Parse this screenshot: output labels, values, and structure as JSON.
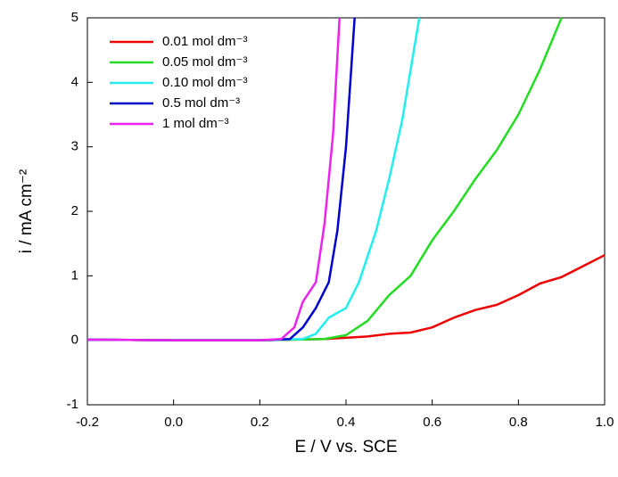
{
  "chart_data": {
    "type": "line",
    "x_label": "E / V vs. SCE",
    "y_label": "i / mA cm⁻²",
    "xlim": [
      -0.2,
      1.0
    ],
    "ylim": [
      -1,
      5
    ],
    "xticks": [
      -0.2,
      {
        "value": 0,
        "label": "0.0"
      },
      0.2,
      0.4,
      0.6,
      0.8,
      {
        "value": 1,
        "label": "1.0"
      }
    ],
    "yticks": [
      -1,
      0,
      1,
      2,
      3,
      4,
      5
    ],
    "legend": "upper-left",
    "series": [
      {
        "name": "0.01 mol dm⁻³",
        "color": "#ee0000",
        "x": [
          -0.2,
          0.0,
          0.2,
          0.35,
          0.45,
          0.5,
          0.55,
          0.6,
          0.65,
          0.7,
          0.75,
          0.8,
          0.85,
          0.9,
          0.95,
          1.0
        ],
        "values": [
          0.01,
          0.0,
          0.0,
          0.02,
          0.06,
          0.1,
          0.12,
          0.2,
          0.35,
          0.47,
          0.55,
          0.7,
          0.88,
          0.98,
          1.15,
          1.32
        ]
      },
      {
        "name": "0.05 mol dm⁻³",
        "color": "#22dd22",
        "x": [
          -0.2,
          0.0,
          0.2,
          0.35,
          0.4,
          0.45,
          0.5,
          0.55,
          0.6,
          0.65,
          0.7,
          0.75,
          0.8,
          0.85,
          0.9
        ],
        "values": [
          0.01,
          0.0,
          0.0,
          0.02,
          0.08,
          0.3,
          0.7,
          1.0,
          1.55,
          2.0,
          2.5,
          2.95,
          3.5,
          4.2,
          5.0
        ]
      },
      {
        "name": "0.10 mol dm⁻³",
        "color": "#22eeee",
        "x": [
          -0.2,
          0.0,
          0.2,
          0.3,
          0.33,
          0.36,
          0.4,
          0.43,
          0.47,
          0.5,
          0.53,
          0.57
        ],
        "values": [
          0.01,
          0.0,
          0.0,
          0.02,
          0.1,
          0.35,
          0.5,
          0.9,
          1.7,
          2.5,
          3.4,
          5.0
        ]
      },
      {
        "name": "0.5 mol dm⁻³",
        "color": "#0000cc",
        "x": [
          -0.2,
          0.0,
          0.2,
          0.27,
          0.3,
          0.33,
          0.36,
          0.38,
          0.4,
          0.42
        ],
        "values": [
          0.01,
          0.0,
          0.0,
          0.02,
          0.2,
          0.5,
          0.9,
          1.7,
          3.0,
          5.0
        ]
      },
      {
        "name": "1 mol dm⁻³",
        "color": "#ee22ee",
        "x": [
          -0.2,
          0.0,
          0.2,
          0.25,
          0.28,
          0.3,
          0.33,
          0.35,
          0.37,
          0.385
        ],
        "values": [
          0.01,
          0.0,
          0.0,
          0.02,
          0.2,
          0.6,
          0.9,
          1.8,
          3.2,
          5.0
        ]
      }
    ]
  }
}
